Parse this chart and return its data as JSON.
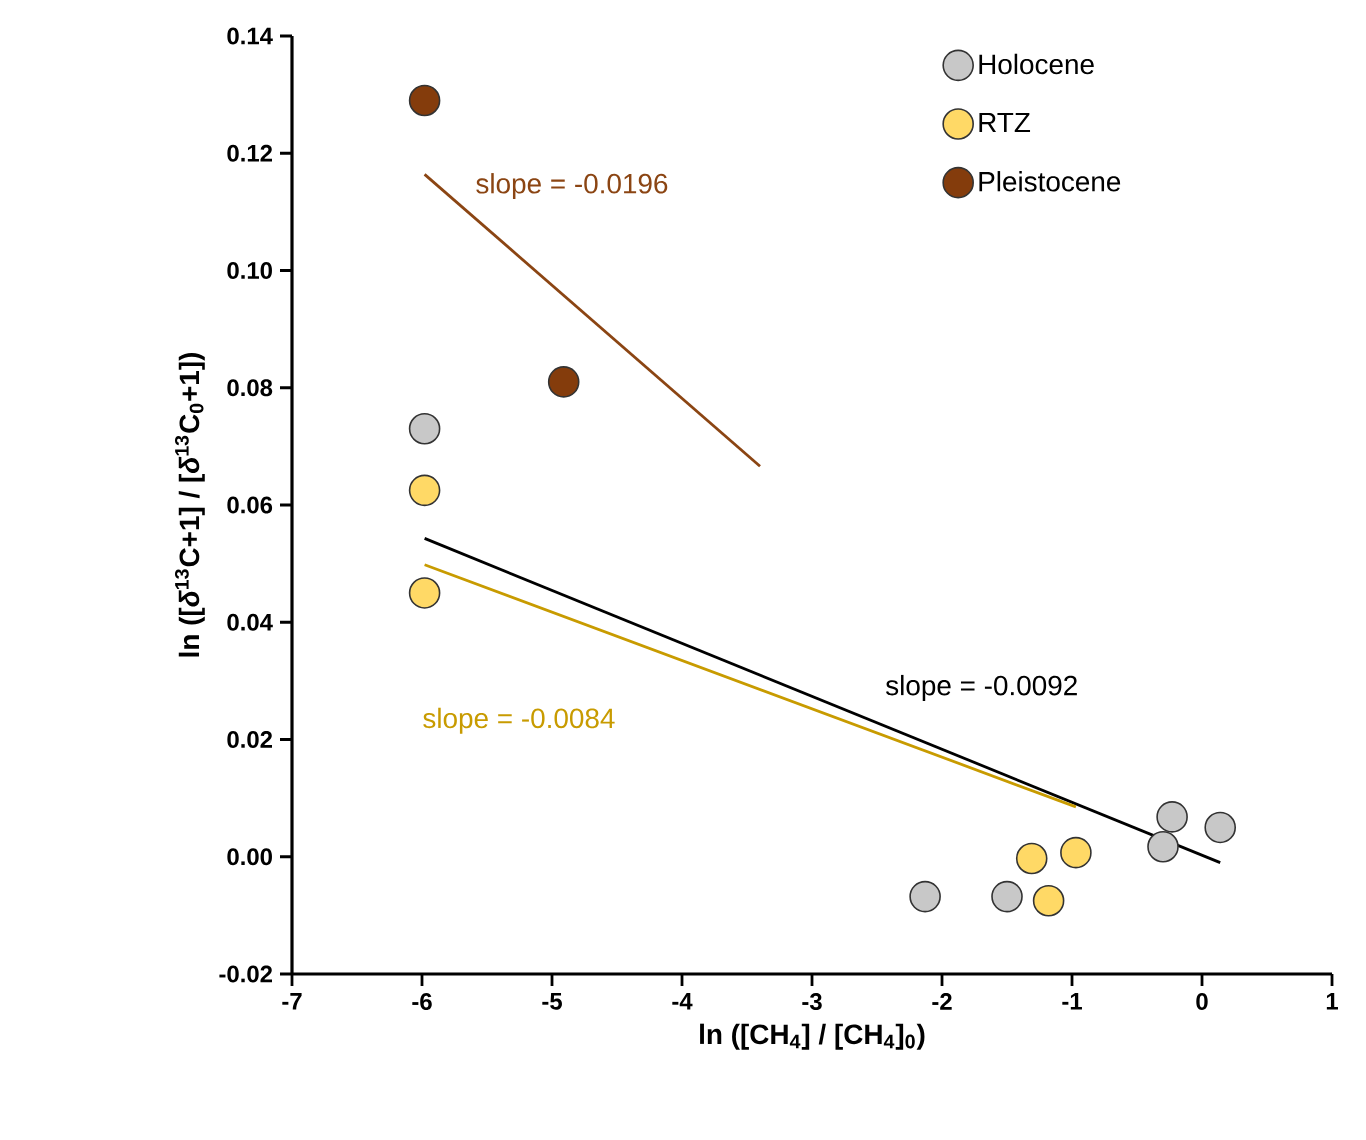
{
  "chart_data": {
    "type": "scatter",
    "xlabel": "ln ([CH$_{4}$] / [CH$_{4}$]$_{0}$)",
    "ylabel": "ln ([*δ*$^{13}$C+1] / [*δ*$^{13}$C$_{0}$+1])",
    "xlim": [
      -7,
      1
    ],
    "xticks": [
      -7,
      -6,
      -5,
      -4,
      -3,
      -2,
      -1,
      0,
      1
    ],
    "ylim": [
      -0.02,
      0.14
    ],
    "yticks": [
      -0.02,
      {
        "value": 0,
        "label": "0.00"
      },
      0.02,
      0.04,
      0.06,
      0.08,
      {
        "value": 0.1,
        "label": "0.10"
      },
      0.12,
      0.14
    ],
    "legend": "top right",
    "grid": false,
    "series": [
      {
        "type": "line",
        "marker": "none",
        "color": "#000000",
        "x": [
          -5.98,
          0.14
        ],
        "values": [
          0.0543,
          -0.001
        ]
      },
      {
        "type": "line",
        "marker": "none",
        "color": "#c89b00",
        "x": [
          -5.98,
          -0.97
        ],
        "values": [
          0.0498,
          0.0085
        ]
      },
      {
        "type": "line",
        "marker": "none",
        "color": "#8b4513",
        "x": [
          -5.98,
          -3.4
        ],
        "values": [
          0.1164,
          0.0666
        ]
      },
      {
        "name": "Holocene",
        "marker": "circle",
        "color": "#c8c8c8",
        "x": [
          -5.98,
          -2.13,
          -1.5,
          -0.3,
          -0.23,
          0.14
        ],
        "values": [
          0.073,
          -0.0068,
          -0.0068,
          0.0017,
          0.0068,
          0.005
        ]
      },
      {
        "name": "RTZ",
        "marker": "circle",
        "color": "#ffd966",
        "x": [
          -5.98,
          -5.98,
          -1.31,
          -0.97,
          -1.18
        ],
        "values": [
          0.0625,
          0.045,
          -0.0003,
          0.0007,
          -0.0075
        ]
      },
      {
        "name": "Pleistocene",
        "marker": "circle",
        "color": "#843c0c",
        "x": [
          -5.98,
          -4.91
        ],
        "values": [
          0.129,
          0.081
        ]
      }
    ],
    "annotations": [
      "slope = -0.0092",
      "slope  = -0.0084",
      "slope = -0.0196"
    ]
  }
}
